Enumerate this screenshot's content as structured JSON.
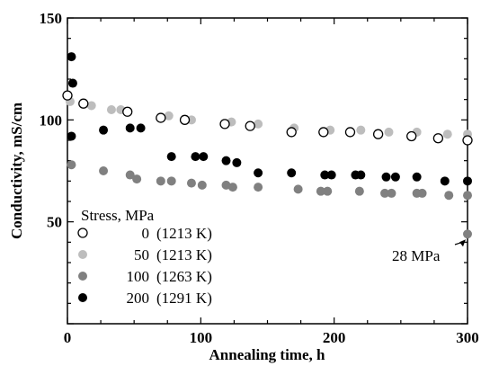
{
  "chart_data": {
    "type": "scatter",
    "title": "",
    "xlabel": "Annealing time, h",
    "ylabel": "Conductivity, mS/cm",
    "xlim": [
      0,
      300
    ],
    "ylim": [
      0,
      150
    ],
    "xticks": [
      0,
      100,
      200,
      300
    ],
    "yticks": [
      50,
      100,
      150
    ],
    "grid": false,
    "legend_title": "Stress, MPa",
    "legend_position": "lower-left",
    "series": [
      {
        "name": "0 (1213 K)",
        "marker": "open-circle",
        "color": "#000000",
        "points": [
          [
            0,
            112
          ],
          [
            12,
            108
          ],
          [
            45,
            104
          ],
          [
            70,
            101
          ],
          [
            88,
            100
          ],
          [
            118,
            98
          ],
          [
            137,
            97
          ],
          [
            168,
            94
          ],
          [
            192,
            94
          ],
          [
            212,
            94
          ],
          [
            233,
            93
          ],
          [
            258,
            92
          ],
          [
            278,
            91
          ],
          [
            300,
            90
          ]
        ]
      },
      {
        "name": "50 (1213 K)",
        "marker": "filled-circle",
        "color": "#bdbdbd",
        "points": [
          [
            2,
            109
          ],
          [
            18,
            107
          ],
          [
            33,
            105
          ],
          [
            40,
            105
          ],
          [
            76,
            102
          ],
          [
            93,
            100
          ],
          [
            123,
            99
          ],
          [
            143,
            98
          ],
          [
            170,
            96
          ],
          [
            197,
            95
          ],
          [
            220,
            95
          ],
          [
            241,
            94
          ],
          [
            262,
            94
          ],
          [
            285,
            93
          ],
          [
            300,
            93
          ]
        ]
      },
      {
        "name": "100 (1263 K)",
        "marker": "filled-circle",
        "color": "#808080",
        "points": [
          [
            3,
            78
          ],
          [
            27,
            75
          ],
          [
            47,
            73
          ],
          [
            52,
            71
          ],
          [
            70,
            70
          ],
          [
            78,
            70
          ],
          [
            93,
            69
          ],
          [
            101,
            68
          ],
          [
            119,
            68
          ],
          [
            124,
            67
          ],
          [
            143,
            67
          ],
          [
            173,
            66
          ],
          [
            190,
            65
          ],
          [
            195,
            65
          ],
          [
            219,
            65
          ],
          [
            238,
            64
          ],
          [
            243,
            64
          ],
          [
            262,
            64
          ],
          [
            266,
            64
          ],
          [
            286,
            63
          ],
          [
            300,
            63
          ],
          [
            300,
            44
          ]
        ]
      },
      {
        "name": "200 (1291 K)",
        "marker": "filled-circle",
        "color": "#000000",
        "points": [
          [
            3,
            131
          ],
          [
            4,
            118
          ],
          [
            3,
            92
          ],
          [
            27,
            95
          ],
          [
            47,
            96
          ],
          [
            55,
            96
          ],
          [
            78,
            82
          ],
          [
            96,
            82
          ],
          [
            102,
            82
          ],
          [
            119,
            80
          ],
          [
            127,
            79
          ],
          [
            143,
            74
          ],
          [
            168,
            74
          ],
          [
            193,
            73
          ],
          [
            198,
            73
          ],
          [
            216,
            73
          ],
          [
            220,
            73
          ],
          [
            239,
            72
          ],
          [
            246,
            72
          ],
          [
            262,
            72
          ],
          [
            283,
            70
          ],
          [
            300,
            70
          ]
        ]
      }
    ],
    "annotations": [
      {
        "text": "28 MPa",
        "points_to": [
          300,
          44
        ]
      }
    ]
  }
}
